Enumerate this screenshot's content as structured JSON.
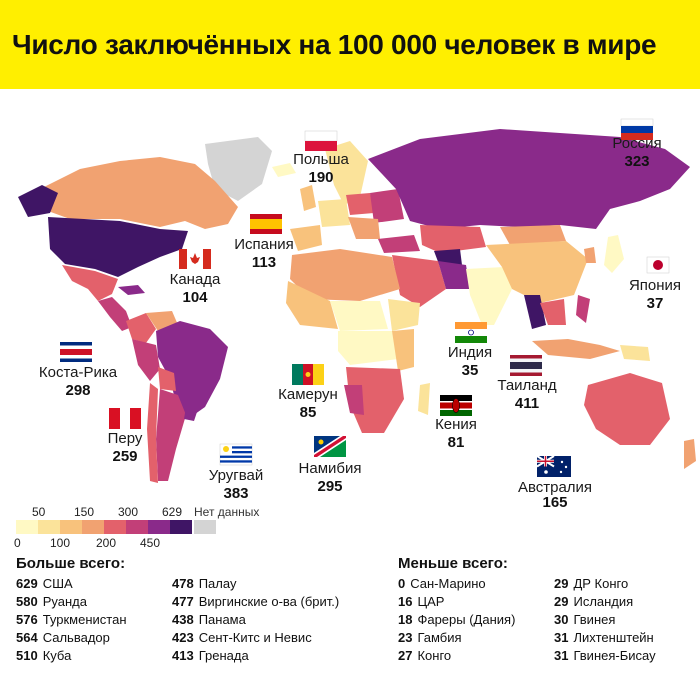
{
  "title": "Число заключённых на 100 000 человек в мире",
  "colors": {
    "title_bg": "#ffef00",
    "no_data": "#d4d4d4",
    "ocean": "#ffffff",
    "scale": [
      "#fff9c4",
      "#fbe39a",
      "#f8c27c",
      "#f1a271",
      "#e3616b",
      "#c23f78",
      "#8a2a8a",
      "#3f1565"
    ]
  },
  "legend": {
    "ticks_top": [
      "50",
      "150",
      "300",
      "629"
    ],
    "ticks_bottom": [
      "0",
      "100",
      "200",
      "450"
    ],
    "no_data_label": "Нет данных"
  },
  "map_labels": [
    {
      "id": "poland",
      "name": "Польша",
      "value": "190",
      "flag": "poland"
    },
    {
      "id": "russia",
      "name": "Россия",
      "value": "323",
      "flag": "russia"
    },
    {
      "id": "spain",
      "name": "Испания",
      "value": "113",
      "flag": "spain"
    },
    {
      "id": "canada",
      "name": "Канада",
      "value": "104",
      "flag": "canada"
    },
    {
      "id": "japan",
      "name": "Япония",
      "value": "37",
      "flag": "japan"
    },
    {
      "id": "costa-rica",
      "name": "Коста-Рика",
      "value": "298",
      "flag": "costa-rica"
    },
    {
      "id": "india",
      "name": "Индия",
      "value": "35",
      "flag": "india"
    },
    {
      "id": "thailand",
      "name": "Таиланд",
      "value": "411",
      "flag": "thailand"
    },
    {
      "id": "cameroon",
      "name": "Камерун",
      "value": "85",
      "flag": "cameroon"
    },
    {
      "id": "peru",
      "name": "Перу",
      "value": "259",
      "flag": "peru"
    },
    {
      "id": "kenya",
      "name": "Кения",
      "value": "81",
      "flag": "kenya"
    },
    {
      "id": "uruguay",
      "name": "Уругвай",
      "value": "383",
      "flag": "uruguay"
    },
    {
      "id": "namibia",
      "name": "Намибия",
      "value": "295",
      "flag": "namibia"
    },
    {
      "id": "australia",
      "name": "Австралия",
      "value": "165",
      "flag": "australia"
    }
  ],
  "most": {
    "heading": "Больше всего:",
    "col1": [
      {
        "num": "629",
        "name": "США"
      },
      {
        "num": "580",
        "name": "Руанда"
      },
      {
        "num": "576",
        "name": "Туркменистан"
      },
      {
        "num": "564",
        "name": "Сальвадор"
      },
      {
        "num": "510",
        "name": "Куба"
      }
    ],
    "col2": [
      {
        "num": "478",
        "name": "Палау"
      },
      {
        "num": "477",
        "name": "Виргинские о-ва (брит.)"
      },
      {
        "num": "438",
        "name": "Панама"
      },
      {
        "num": "423",
        "name": "Сент-Китс и Невис"
      },
      {
        "num": "413",
        "name": "Гренада"
      }
    ]
  },
  "least": {
    "heading": "Меньше всего:",
    "col1": [
      {
        "num": "0",
        "name": "Сан-Марино"
      },
      {
        "num": "16",
        "name": "ЦАР"
      },
      {
        "num": "18",
        "name": "Фареры (Дания)"
      },
      {
        "num": "23",
        "name": "Гамбия"
      },
      {
        "num": "27",
        "name": "Конго"
      }
    ],
    "col2": [
      {
        "num": "29",
        "name": "ДР Конго"
      },
      {
        "num": "29",
        "name": "Исландия"
      },
      {
        "num": "30",
        "name": "Гвинея"
      },
      {
        "num": "31",
        "name": "Лихтенштейн"
      },
      {
        "num": "31",
        "name": "Гвинея-Бисау"
      }
    ]
  }
}
